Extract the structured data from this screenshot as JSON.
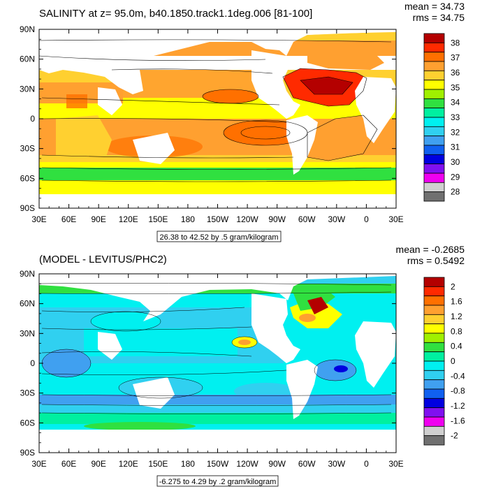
{
  "chart_data": [
    {
      "type": "heatmap",
      "title": "SALINITY at z=  95.0m, b40.1850.track1.1deg.006 [81-100]",
      "stats": [
        "mean = 34.73",
        "rms = 34.75"
      ],
      "x_ticks": [
        "30E",
        "60E",
        "90E",
        "120E",
        "150E",
        "180",
        "150W",
        "120W",
        "90W",
        "60W",
        "30W",
        "0",
        "30E"
      ],
      "y_ticks": [
        "90N",
        "60N",
        "30N",
        "0",
        "30S",
        "60S",
        "90S"
      ],
      "range_note": "26.38 to 42.52 by .5 gram/kilogram",
      "colorbar": {
        "labels": [
          "38",
          "37",
          "36",
          "35",
          "34",
          "33",
          "32",
          "31",
          "30",
          "29",
          "28"
        ],
        "colors": [
          "#b40000",
          "#ff2a00",
          "#ff7000",
          "#ffa030",
          "#ffd030",
          "#ffff00",
          "#a0f000",
          "#30e040",
          "#00f0a0",
          "#00f0f0",
          "#30d0f0",
          "#40a0f0",
          "#1060f0",
          "#0000e0",
          "#8010f0",
          "#f000f0",
          "#d0d0d0",
          "#707070"
        ]
      }
    },
    {
      "type": "heatmap",
      "title": "(MODEL - LEVITUS/PHC2)",
      "stats": [
        "mean = -0.2685",
        "rms = 0.5492"
      ],
      "x_ticks": [
        "30E",
        "60E",
        "90E",
        "120E",
        "150E",
        "180",
        "150W",
        "120W",
        "90W",
        "60W",
        "30W",
        "0",
        "30E"
      ],
      "y_ticks": [
        "90N",
        "60N",
        "30N",
        "0",
        "30S",
        "60S",
        "90S"
      ],
      "range_note": "-6.275 to 4.29 by .2 gram/kilogram",
      "colorbar": {
        "labels": [
          "2",
          "1.6",
          "1.2",
          "0.8",
          "0.4",
          "0",
          "-0.4",
          "-0.8",
          "-1.2",
          "-1.6",
          "-2"
        ],
        "colors": [
          "#b40000",
          "#ff2a00",
          "#ff7000",
          "#ffa030",
          "#ffd030",
          "#ffff00",
          "#a0f000",
          "#30e040",
          "#00f0a0",
          "#00f0f0",
          "#30d0f0",
          "#40a0f0",
          "#1060f0",
          "#0000e0",
          "#8010f0",
          "#f000f0",
          "#d0d0d0",
          "#707070"
        ]
      }
    }
  ]
}
